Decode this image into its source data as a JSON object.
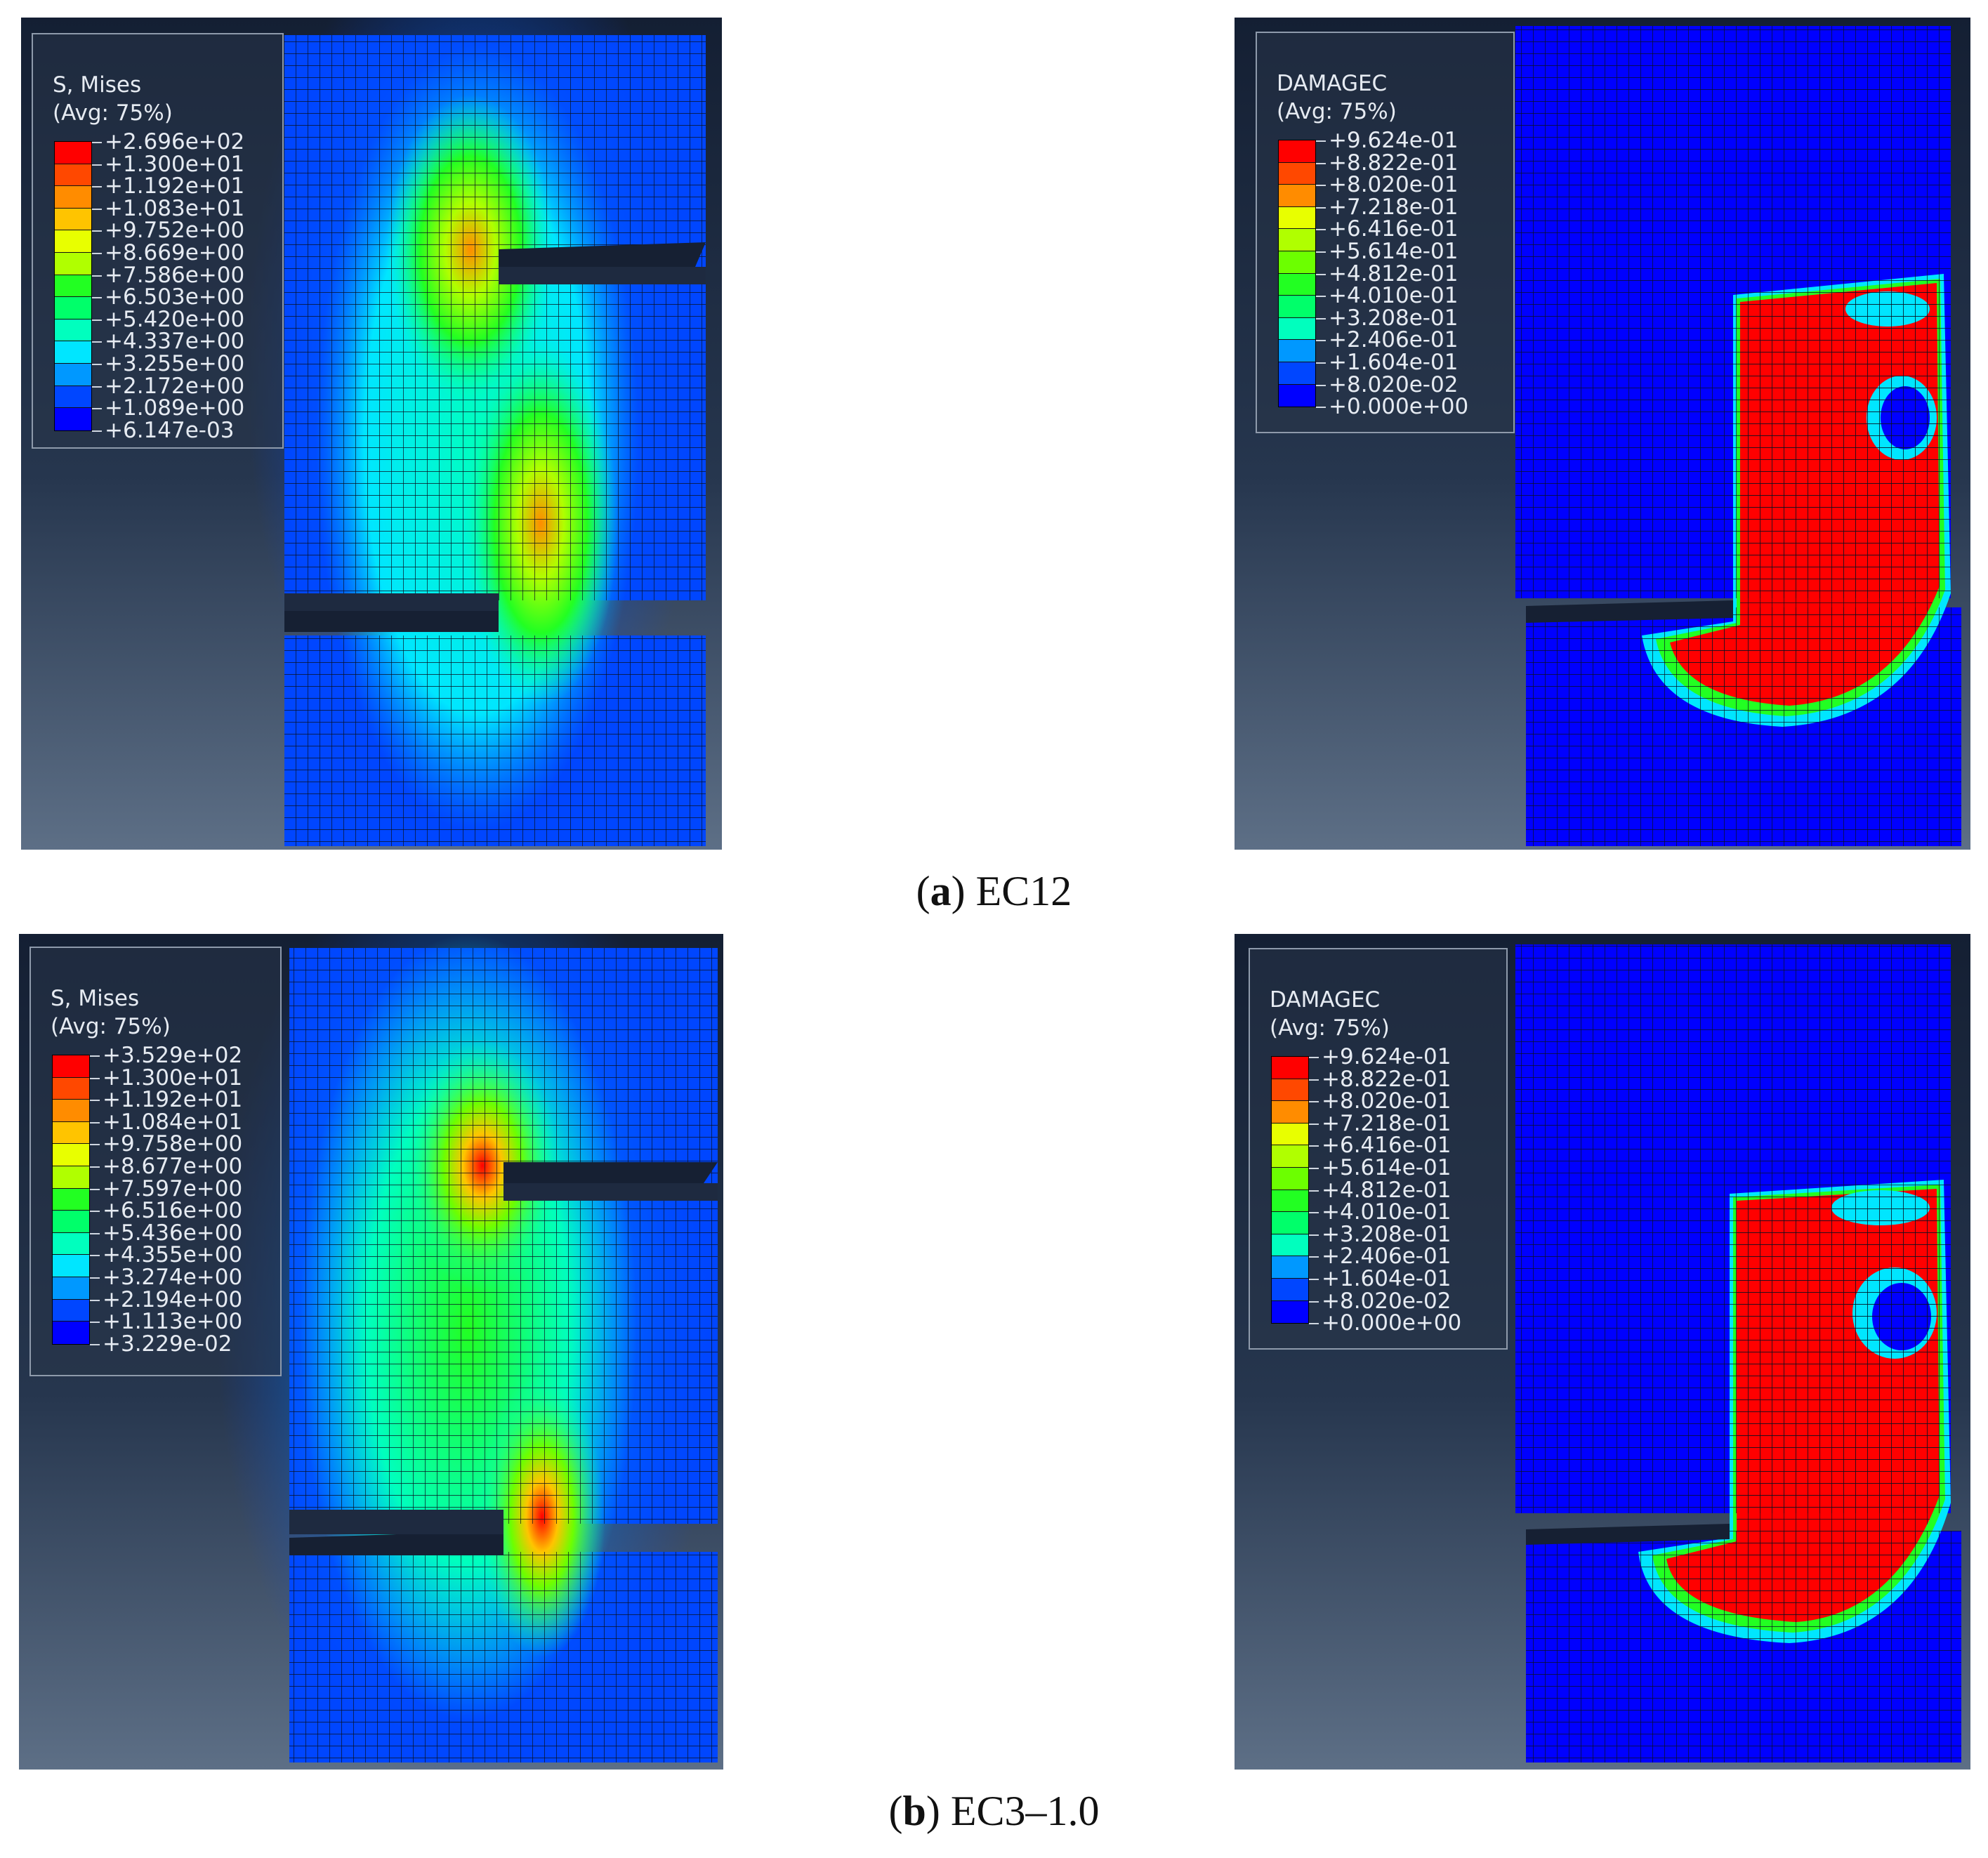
{
  "figures": [
    {
      "caption_letter": "a",
      "caption_text": "EC12",
      "stress": {
        "legend_title": "S, Mises\n(Avg: 75%)",
        "levels": [
          "+2.696e+02",
          "+1.300e+01",
          "+1.192e+01",
          "+1.083e+01",
          "+9.752e+00",
          "+8.669e+00",
          "+7.586e+00",
          "+6.503e+00",
          "+5.420e+00",
          "+4.337e+00",
          "+3.255e+00",
          "+2.172e+00",
          "+1.089e+00",
          "+6.147e-03"
        ]
      },
      "damage": {
        "legend_title": "DAMAGEC\n(Avg: 75%)",
        "levels": [
          "+9.624e-01",
          "+8.822e-01",
          "+8.020e-01",
          "+7.218e-01",
          "+6.416e-01",
          "+5.614e-01",
          "+4.812e-01",
          "+4.010e-01",
          "+3.208e-01",
          "+2.406e-01",
          "+1.604e-01",
          "+8.020e-02",
          "+0.000e+00"
        ]
      }
    },
    {
      "caption_letter": "b",
      "caption_text": "EC3–1.0",
      "stress": {
        "legend_title": "S, Mises\n(Avg: 75%)",
        "levels": [
          "+3.529e+02",
          "+1.300e+01",
          "+1.192e+01",
          "+1.084e+01",
          "+9.758e+00",
          "+8.677e+00",
          "+7.597e+00",
          "+6.516e+00",
          "+5.436e+00",
          "+4.355e+00",
          "+3.274e+00",
          "+2.194e+00",
          "+1.113e+00",
          "+3.229e-02"
        ]
      },
      "damage": {
        "legend_title": "DAMAGEC\n(Avg: 75%)",
        "levels": [
          "+9.624e-01",
          "+8.822e-01",
          "+8.020e-01",
          "+7.218e-01",
          "+6.416e-01",
          "+5.614e-01",
          "+4.812e-01",
          "+4.010e-01",
          "+3.208e-01",
          "+2.406e-01",
          "+1.604e-01",
          "+8.020e-02",
          "+0.000e+00"
        ]
      }
    }
  ],
  "contour_colors": [
    "#ff0000",
    "#ff4800",
    "#ff8c00",
    "#ffc400",
    "#e8ff00",
    "#b0ff00",
    "#6cff00",
    "#22ff22",
    "#00ff6a",
    "#00ffbe",
    "#00e6ff",
    "#0098ff",
    "#0046ff",
    "#0000ff"
  ]
}
